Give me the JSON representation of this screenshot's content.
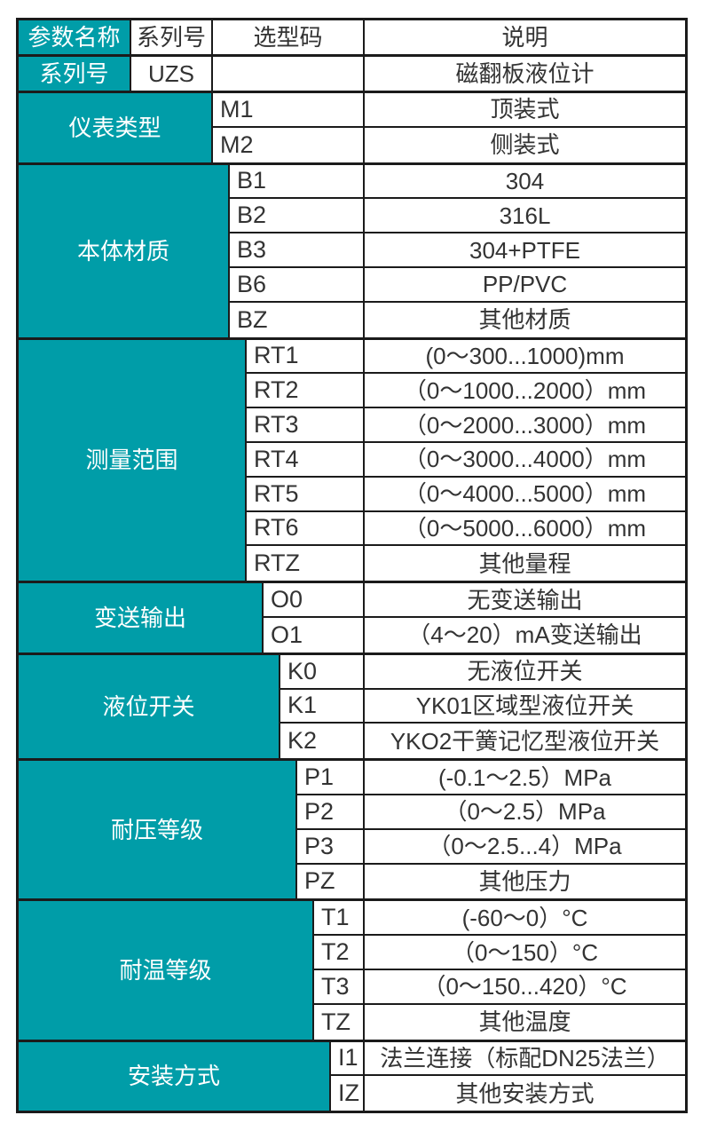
{
  "colors": {
    "teal": "#009DA8",
    "border": "#1B1B1B",
    "text": "#333333",
    "label_text": "#FFFFFF",
    "background": "#FFFFFF"
  },
  "header": {
    "param_name": "参数名称",
    "series_no": "系列号",
    "selection_code": "选型码",
    "description": "说明"
  },
  "series_row": {
    "label": "系列号",
    "code": "UZS",
    "description": "磁翻板液位计"
  },
  "sections": [
    {
      "label": "仪表类型",
      "rows": [
        {
          "code": "M1",
          "desc": "顶装式"
        },
        {
          "code": "M2",
          "desc": "侧装式"
        }
      ]
    },
    {
      "label": "本体材质",
      "rows": [
        {
          "code": "B1",
          "desc": "304"
        },
        {
          "code": "B2",
          "desc": "316L"
        },
        {
          "code": "B3",
          "desc": "304+PTFE"
        },
        {
          "code": "B6",
          "desc": "PP/PVC"
        },
        {
          "code": "BZ",
          "desc": "其他材质"
        }
      ]
    },
    {
      "label": "测量范围",
      "rows": [
        {
          "code": "RT1",
          "desc": "(0～300...1000)mm"
        },
        {
          "code": "RT2",
          "desc": "（0～1000...2000）mm"
        },
        {
          "code": "RT3",
          "desc": "（0～2000...3000）mm"
        },
        {
          "code": "RT4",
          "desc": "（0～3000...4000）mm"
        },
        {
          "code": "RT5",
          "desc": "（0～4000...5000）mm"
        },
        {
          "code": "RT6",
          "desc": "（0～5000...6000）mm"
        },
        {
          "code": "RTZ",
          "desc": "其他量程"
        }
      ]
    },
    {
      "label": "变送输出",
      "rows": [
        {
          "code": "O0",
          "desc": "无变送输出"
        },
        {
          "code": "O1",
          "desc": "（4～20）mA变送输出"
        }
      ]
    },
    {
      "label": "液位开关",
      "rows": [
        {
          "code": "K0",
          "desc": "无液位开关"
        },
        {
          "code": "K1",
          "desc": "YK01区域型液位开关"
        },
        {
          "code": "K2",
          "desc": "YKO2干簧记忆型液位开关"
        }
      ]
    },
    {
      "label": "耐压等级",
      "rows": [
        {
          "code": "P1",
          "desc": "(-0.1～2.5）MPa"
        },
        {
          "code": "P2",
          "desc": "（0～2.5）MPa"
        },
        {
          "code": "P3",
          "desc": "（0～2.5...4）MPa"
        },
        {
          "code": "PZ",
          "desc": "其他压力"
        }
      ]
    },
    {
      "label": "耐温等级",
      "rows": [
        {
          "code": "T1",
          "desc": "(-60～0）°C"
        },
        {
          "code": "T2",
          "desc": "（0～150）°C"
        },
        {
          "code": "T3",
          "desc": "（0～150...420）°C"
        },
        {
          "code": "TZ",
          "desc": "其他温度"
        }
      ]
    },
    {
      "label": "安装方式",
      "rows": [
        {
          "code": "I1",
          "desc": "法兰连接（标配DN25法兰）"
        },
        {
          "code": "IZ",
          "desc": "其他安装方式"
        }
      ]
    }
  ]
}
